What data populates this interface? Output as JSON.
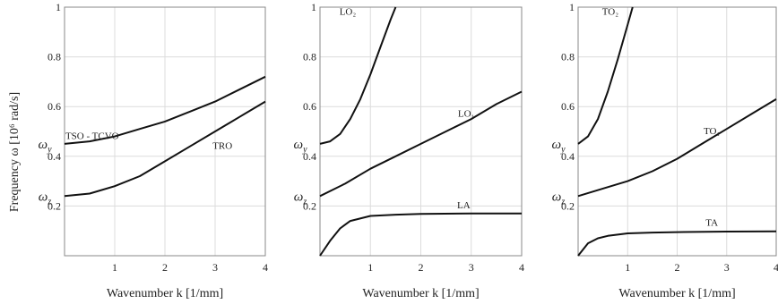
{
  "figure": {
    "ylabel": "Frequency ω [10⁶ rad/s]"
  },
  "chart_data": [
    {
      "type": "line",
      "xlabel": "Wavenumber k [1/mm]",
      "ylabel": "Frequency ω [10⁶ rad/s]",
      "xlim": [
        0,
        4
      ],
      "ylim": [
        0,
        1
      ],
      "x_ticks": [
        "1",
        "2",
        "3",
        "4"
      ],
      "y_ticks": [
        "0.2",
        "0.4",
        "0.6",
        "0.8",
        "1"
      ],
      "grid": true,
      "markers": [
        {
          "label": "ω_y",
          "y": 0.45
        },
        {
          "label": "ω_z",
          "y": 0.24
        }
      ],
      "series": [
        {
          "name": "TSO - TCVO",
          "x": [
            0,
            0.5,
            1,
            1.5,
            2,
            2.5,
            3,
            3.5,
            4
          ],
          "y": [
            0.45,
            0.46,
            0.48,
            0.51,
            0.54,
            0.58,
            0.62,
            0.67,
            0.72
          ]
        },
        {
          "name": "TRO",
          "x": [
            0,
            0.5,
            1,
            1.5,
            2,
            2.5,
            3,
            3.5,
            4
          ],
          "y": [
            0.24,
            0.25,
            0.28,
            0.32,
            0.38,
            0.44,
            0.5,
            0.56,
            0.62
          ]
        }
      ]
    },
    {
      "type": "line",
      "xlabel": "Wavenumber k [1/mm]",
      "xlim": [
        0,
        4
      ],
      "ylim": [
        0,
        1
      ],
      "x_ticks": [
        "1",
        "2",
        "3",
        "4"
      ],
      "y_ticks": [
        "0.2",
        "0.4",
        "0.6",
        "0.8",
        "1"
      ],
      "grid": true,
      "markers": [
        {
          "label": "ω_y",
          "y": 0.45
        },
        {
          "label": "ω_z",
          "y": 0.24
        }
      ],
      "series": [
        {
          "name": "LO₂",
          "x": [
            0,
            0.2,
            0.4,
            0.6,
            0.8,
            1.0,
            1.2,
            1.4,
            1.5
          ],
          "y": [
            0.45,
            0.46,
            0.49,
            0.55,
            0.63,
            0.73,
            0.84,
            0.95,
            1.0
          ]
        },
        {
          "name": "LO₁",
          "x": [
            0,
            0.5,
            1,
            1.5,
            2,
            2.5,
            3,
            3.5,
            4
          ],
          "y": [
            0.24,
            0.29,
            0.35,
            0.4,
            0.45,
            0.5,
            0.55,
            0.61,
            0.66
          ]
        },
        {
          "name": "LA",
          "x": [
            0,
            0.2,
            0.4,
            0.6,
            1.0,
            1.5,
            2,
            3,
            4
          ],
          "y": [
            0.0,
            0.06,
            0.11,
            0.14,
            0.16,
            0.165,
            0.168,
            0.17,
            0.17
          ]
        }
      ]
    },
    {
      "type": "line",
      "xlabel": "Wavenumber k [1/mm]",
      "xlim": [
        0,
        4
      ],
      "ylim": [
        0,
        1
      ],
      "x_ticks": [
        "1",
        "2",
        "3",
        "4"
      ],
      "y_ticks": [
        "0.2",
        "0.4",
        "0.6",
        "0.8",
        "1"
      ],
      "grid": true,
      "markers": [
        {
          "label": "ω_y",
          "y": 0.45
        },
        {
          "label": "ω_z",
          "y": 0.24
        }
      ],
      "series": [
        {
          "name": "TO₂",
          "x": [
            0,
            0.2,
            0.4,
            0.6,
            0.8,
            1.0,
            1.1
          ],
          "y": [
            0.45,
            0.48,
            0.55,
            0.66,
            0.79,
            0.93,
            1.0
          ]
        },
        {
          "name": "TO₁",
          "x": [
            0,
            0.5,
            1,
            1.5,
            2,
            2.5,
            3,
            3.5,
            4
          ],
          "y": [
            0.24,
            0.27,
            0.3,
            0.34,
            0.39,
            0.45,
            0.51,
            0.57,
            0.63
          ]
        },
        {
          "name": "TA",
          "x": [
            0,
            0.2,
            0.4,
            0.6,
            1.0,
            1.5,
            2,
            3,
            4
          ],
          "y": [
            0.0,
            0.05,
            0.07,
            0.08,
            0.09,
            0.093,
            0.095,
            0.097,
            0.098
          ]
        }
      ]
    }
  ]
}
